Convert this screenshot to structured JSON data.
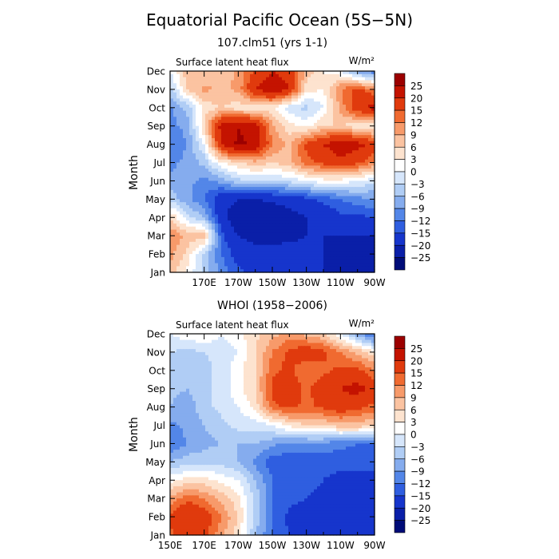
{
  "figure": {
    "title": "Equatorial Pacific Ocean (5S−5N)",
    "ylabel": "Month",
    "months": [
      "Jan",
      "Feb",
      "Mar",
      "Apr",
      "May",
      "Jun",
      "Jul",
      "Aug",
      "Sep",
      "Oct",
      "Nov",
      "Dec"
    ],
    "colorbar": {
      "labels": [
        "25",
        "20",
        "15",
        "12",
        "9",
        "6",
        "3",
        "0",
        "−3",
        "−6",
        "−9",
        "−12",
        "−15",
        "−20",
        "−25"
      ],
      "colors": [
        "#9c0000",
        "#c41300",
        "#e03a0d",
        "#f06a30",
        "#f79a6a",
        "#fbc3a1",
        "#fde3cf",
        "#ffffff",
        "#d6e6fb",
        "#b0cdf5",
        "#85acee",
        "#5386e8",
        "#2f5ee0",
        "#1635cc",
        "#0a1fa8",
        "#000c78"
      ]
    },
    "contour_levels": [
      -25,
      -20,
      -15,
      -12,
      -9,
      -6,
      -3,
      0,
      3,
      6,
      9,
      12,
      15,
      20,
      25
    ]
  },
  "chart_data": [
    {
      "type": "heatmap",
      "subtitle": "107.clm51 (yrs 1-1)",
      "panel_label": "Surface latent heat flux",
      "units": "W/m²",
      "ylabel": "Month",
      "x_tick_labels": [
        "170E",
        "170W",
        "150W",
        "130W",
        "110W",
        "90W"
      ],
      "x_tick_lon": [
        170,
        190,
        210,
        230,
        250,
        270
      ],
      "xlim_lon": [
        150,
        270
      ],
      "y_categories": [
        "Jan",
        "Feb",
        "Mar",
        "Apr",
        "May",
        "Jun",
        "Jul",
        "Aug",
        "Sep",
        "Oct",
        "Nov",
        "Dec"
      ],
      "lon": [
        150,
        160,
        170,
        180,
        190,
        200,
        210,
        220,
        230,
        240,
        250,
        260,
        270
      ],
      "values": [
        [
          8,
          2,
          -4,
          -10,
          -14,
          -16,
          -17,
          -18,
          -19,
          -20,
          -20,
          -21,
          -21
        ],
        [
          10,
          5,
          -4,
          -12,
          -17,
          -18,
          -18,
          -18,
          -19,
          -20,
          -22,
          -22,
          -22
        ],
        [
          12,
          8,
          8,
          -14,
          -20,
          -22,
          -22,
          -21,
          -20,
          -20,
          -20,
          -20,
          -20
        ],
        [
          6,
          -2,
          -6,
          -18,
          -24,
          -25,
          -24,
          -22,
          -20,
          -18,
          -16,
          -16,
          -15
        ],
        [
          -4,
          -8,
          -12,
          -18,
          -20,
          -20,
          -19,
          -18,
          -16,
          -14,
          -12,
          -10,
          -9
        ],
        [
          -8,
          -8,
          -10,
          -8,
          -4,
          -3,
          -3,
          -2,
          0,
          2,
          2,
          0,
          -2
        ],
        [
          -10,
          -8,
          -5,
          3,
          6,
          8,
          6,
          8,
          14,
          16,
          18,
          16,
          12
        ],
        [
          -12,
          -9,
          0,
          20,
          26,
          24,
          12,
          8,
          16,
          20,
          24,
          22,
          18
        ],
        [
          -10,
          -8,
          6,
          22,
          25,
          22,
          10,
          4,
          2,
          6,
          6,
          4,
          2
        ],
        [
          -10,
          -5,
          4,
          6,
          4,
          4,
          4,
          -2,
          -4,
          0,
          10,
          18,
          22
        ],
        [
          -4,
          6,
          10,
          8,
          10,
          20,
          24,
          20,
          4,
          3,
          12,
          16,
          12
        ],
        [
          0,
          8,
          6,
          6,
          10,
          16,
          20,
          18,
          8,
          3,
          0,
          -8,
          -12
        ]
      ]
    },
    {
      "type": "heatmap",
      "subtitle": "WHOI (1958−2006)",
      "panel_label": "Surface latent heat flux",
      "units": "W/m²",
      "ylabel": "Month",
      "x_tick_labels": [
        "150E",
        "170E",
        "170W",
        "150W",
        "130W",
        "110W",
        "90W"
      ],
      "x_tick_lon": [
        150,
        170,
        190,
        210,
        230,
        250,
        270
      ],
      "xlim_lon": [
        150,
        270
      ],
      "y_categories": [
        "Jan",
        "Feb",
        "Mar",
        "Apr",
        "May",
        "Jun",
        "Jul",
        "Aug",
        "Sep",
        "Oct",
        "Nov",
        "Dec"
      ],
      "lon": [
        150,
        160,
        170,
        180,
        190,
        200,
        210,
        220,
        230,
        240,
        250,
        260,
        270
      ],
      "values": [
        [
          14,
          18,
          16,
          10,
          4,
          -6,
          -12,
          -15,
          -16,
          -17,
          -18,
          -19,
          -20
        ],
        [
          16,
          20,
          18,
          12,
          6,
          -4,
          -12,
          -16,
          -17,
          -18,
          -19,
          -20,
          -20
        ],
        [
          10,
          14,
          12,
          8,
          4,
          -4,
          -12,
          -14,
          -15,
          -16,
          -17,
          -18,
          -18
        ],
        [
          2,
          4,
          4,
          2,
          0,
          -6,
          -12,
          -14,
          -14,
          -15,
          -16,
          -16,
          -16
        ],
        [
          -6,
          -4,
          -4,
          -4,
          -6,
          -10,
          -14,
          -14,
          -14,
          -14,
          -14,
          -14,
          -14
        ],
        [
          -12,
          -9,
          -7,
          -6,
          -6,
          -6,
          -8,
          -10,
          -10,
          -10,
          -11,
          -12,
          -12
        ],
        [
          -10,
          -8,
          -6,
          -4,
          -2,
          -2,
          0,
          4,
          6,
          6,
          8,
          8,
          6
        ],
        [
          -6,
          -8,
          -4,
          -2,
          0,
          4,
          14,
          16,
          14,
          16,
          18,
          16,
          14
        ],
        [
          -5,
          -6,
          -4,
          -2,
          2,
          6,
          16,
          18,
          14,
          18,
          20,
          22,
          18
        ],
        [
          -6,
          -5,
          -4,
          -2,
          2,
          6,
          14,
          16,
          12,
          14,
          16,
          16,
          12
        ],
        [
          -3,
          -4,
          -3,
          -2,
          0,
          6,
          12,
          16,
          18,
          16,
          12,
          8,
          4
        ],
        [
          0,
          2,
          3,
          0,
          2,
          5,
          8,
          10,
          8,
          6,
          0,
          -8,
          -14
        ]
      ]
    }
  ]
}
